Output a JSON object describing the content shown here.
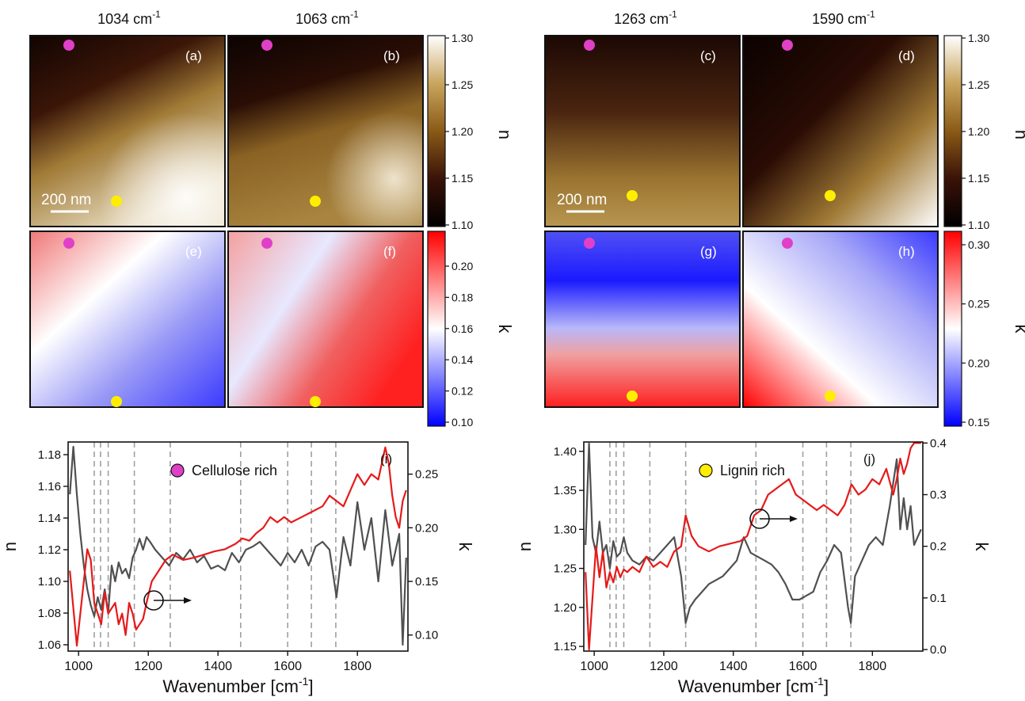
{
  "figure": {
    "col_titles": {
      "a": {
        "base": "1034 cm",
        "sup": "-1"
      },
      "b": {
        "base": "1063 cm",
        "sup": "-1"
      },
      "c": {
        "base": "1263 cm",
        "sup": "-1"
      },
      "d": {
        "base": "1590 cm",
        "sup": "-1"
      }
    },
    "panel_labels": {
      "a": "(a)",
      "b": "(b)",
      "c": "(c)",
      "d": "(d)",
      "e": "(e)",
      "f": "(f)",
      "g": "(g)",
      "h": "(h)",
      "i": "(i)",
      "j": "(j)"
    },
    "scalebar": "200 nm",
    "markers": {
      "cellulose_color": "#e040c8",
      "lignin_color": "#ffee00"
    },
    "colorbars": {
      "n_left": {
        "label": "n",
        "ticks": [
          "1.30",
          "1.25",
          "1.20",
          "1.15",
          "1.10"
        ]
      },
      "k_left": {
        "label": "k",
        "ticks": [
          "0.20",
          "0.18",
          "0.16",
          "0.14",
          "0.12",
          "0.10"
        ]
      },
      "n_right": {
        "label": "n",
        "ticks": [
          "1.30",
          "1.25",
          "1.20",
          "1.15",
          "1.10"
        ]
      },
      "k_right": {
        "label": "k",
        "ticks": [
          "0.30",
          "0.25",
          "0.20",
          "0.15"
        ]
      }
    },
    "colormaps": {
      "n": [
        "#000000",
        "#3a1208",
        "#8a5a16",
        "#c9a55e",
        "#ffffff"
      ],
      "k": [
        "#0000ff",
        "#ffffff",
        "#ff0000"
      ]
    }
  },
  "chart_data": [
    {
      "type": "line",
      "panel": "(i)",
      "legend": "Cellulose rich",
      "xlabel": {
        "base": "Wavenumber [cm",
        "sup": "-1",
        "tail": "]"
      },
      "ylabel": "n",
      "y2label": "k",
      "xlim": [
        970,
        1945
      ],
      "ylim": [
        1.056,
        1.188
      ],
      "y2lim": [
        0.085,
        0.28
      ],
      "xticks": [
        1000,
        1200,
        1400,
        1600,
        1800
      ],
      "yticks": [
        1.06,
        1.08,
        1.1,
        1.12,
        1.14,
        1.16,
        1.18
      ],
      "y2ticks": [
        0.1,
        0.15,
        0.2,
        0.25
      ],
      "vlines": [
        1045,
        1063,
        1085,
        1160,
        1263,
        1465,
        1600,
        1668,
        1738
      ],
      "colors": {
        "n": "#505050",
        "k": "#e51a1a"
      },
      "series": [
        {
          "axis": "left",
          "color": "#505050",
          "x": [
            975,
            985,
            995,
            1005,
            1015,
            1025,
            1035,
            1045,
            1055,
            1065,
            1075,
            1085,
            1095,
            1105,
            1115,
            1125,
            1135,
            1145,
            1155,
            1165,
            1175,
            1185,
            1195,
            1205,
            1220,
            1240,
            1260,
            1280,
            1300,
            1320,
            1340,
            1360,
            1380,
            1400,
            1420,
            1440,
            1460,
            1480,
            1500,
            1520,
            1540,
            1560,
            1580,
            1600,
            1620,
            1640,
            1660,
            1680,
            1700,
            1720,
            1740,
            1760,
            1780,
            1800,
            1820,
            1840,
            1860,
            1880,
            1900,
            1920,
            1930,
            1940
          ],
          "y": [
            1.155,
            1.185,
            1.155,
            1.13,
            1.11,
            1.095,
            1.085,
            1.078,
            1.09,
            1.082,
            1.095,
            1.08,
            1.11,
            1.1,
            1.112,
            1.105,
            1.108,
            1.102,
            1.115,
            1.12,
            1.127,
            1.12,
            1.128,
            1.125,
            1.12,
            1.115,
            1.11,
            1.118,
            1.114,
            1.12,
            1.112,
            1.116,
            1.108,
            1.11,
            1.107,
            1.118,
            1.112,
            1.12,
            1.122,
            1.125,
            1.12,
            1.115,
            1.11,
            1.118,
            1.112,
            1.12,
            1.11,
            1.122,
            1.125,
            1.12,
            1.09,
            1.128,
            1.11,
            1.15,
            1.12,
            1.14,
            1.1,
            1.145,
            1.11,
            1.13,
            1.06,
            1.115
          ]
        },
        {
          "axis": "right",
          "color": "#e51a1a",
          "x": [
            975,
            985,
            995,
            1005,
            1015,
            1025,
            1035,
            1045,
            1055,
            1065,
            1075,
            1085,
            1095,
            1105,
            1115,
            1125,
            1135,
            1145,
            1155,
            1165,
            1175,
            1185,
            1195,
            1210,
            1230,
            1250,
            1270,
            1300,
            1330,
            1360,
            1390,
            1420,
            1450,
            1470,
            1490,
            1510,
            1530,
            1550,
            1570,
            1590,
            1610,
            1640,
            1670,
            1700,
            1720,
            1740,
            1760,
            1780,
            1800,
            1820,
            1840,
            1860,
            1870,
            1880,
            1890,
            1900,
            1910,
            1920,
            1930,
            1940
          ],
          "y": [
            0.16,
            0.125,
            0.09,
            0.12,
            0.15,
            0.18,
            0.17,
            0.13,
            0.12,
            0.11,
            0.14,
            0.12,
            0.125,
            0.13,
            0.11,
            0.12,
            0.1,
            0.13,
            0.12,
            0.105,
            0.11,
            0.115,
            0.13,
            0.15,
            0.16,
            0.17,
            0.175,
            0.17,
            0.172,
            0.175,
            0.178,
            0.18,
            0.185,
            0.19,
            0.188,
            0.195,
            0.2,
            0.21,
            0.205,
            0.21,
            0.205,
            0.21,
            0.215,
            0.22,
            0.23,
            0.225,
            0.22,
            0.235,
            0.25,
            0.24,
            0.25,
            0.245,
            0.26,
            0.275,
            0.26,
            0.23,
            0.21,
            0.2,
            0.225,
            0.235
          ]
        }
      ]
    },
    {
      "type": "line",
      "panel": "(j)",
      "legend": "Lignin rich",
      "xlabel": {
        "base": "Wavenumber [cm",
        "sup": "-1",
        "tail": "]"
      },
      "ylabel": "n",
      "y2label": "k",
      "xlim": [
        970,
        1945
      ],
      "ylim": [
        1.144,
        1.412
      ],
      "y2lim": [
        -0.003,
        0.402
      ],
      "xticks": [
        1000,
        1200,
        1400,
        1600,
        1800
      ],
      "yticks": [
        1.15,
        1.2,
        1.25,
        1.3,
        1.35,
        1.4
      ],
      "y2ticks": [
        0.0,
        0.1,
        0.2,
        0.3,
        0.4
      ],
      "vlines": [
        1045,
        1063,
        1085,
        1160,
        1263,
        1465,
        1600,
        1668,
        1738
      ],
      "colors": {
        "n": "#505050",
        "k": "#e51a1a"
      },
      "series": [
        {
          "axis": "left",
          "color": "#505050",
          "x": [
            975,
            985,
            995,
            1005,
            1015,
            1025,
            1035,
            1045,
            1055,
            1065,
            1075,
            1085,
            1095,
            1110,
            1130,
            1150,
            1170,
            1190,
            1210,
            1230,
            1250,
            1263,
            1275,
            1290,
            1310,
            1330,
            1350,
            1370,
            1390,
            1410,
            1430,
            1450,
            1470,
            1490,
            1510,
            1530,
            1550,
            1570,
            1590,
            1610,
            1630,
            1650,
            1670,
            1690,
            1710,
            1730,
            1738,
            1750,
            1770,
            1790,
            1810,
            1830,
            1850,
            1870,
            1880,
            1890,
            1900,
            1910,
            1920,
            1940
          ],
          "y": [
            1.28,
            1.41,
            1.29,
            1.27,
            1.31,
            1.27,
            1.28,
            1.25,
            1.285,
            1.265,
            1.27,
            1.29,
            1.27,
            1.26,
            1.255,
            1.265,
            1.26,
            1.27,
            1.28,
            1.29,
            1.24,
            1.18,
            1.2,
            1.21,
            1.22,
            1.23,
            1.235,
            1.24,
            1.25,
            1.26,
            1.29,
            1.27,
            1.265,
            1.26,
            1.255,
            1.245,
            1.23,
            1.21,
            1.21,
            1.215,
            1.22,
            1.245,
            1.26,
            1.28,
            1.27,
            1.2,
            1.18,
            1.24,
            1.26,
            1.28,
            1.29,
            1.28,
            1.33,
            1.39,
            1.3,
            1.34,
            1.3,
            1.33,
            1.28,
            1.3
          ]
        },
        {
          "axis": "right",
          "color": "#e51a1a",
          "x": [
            975,
            985,
            995,
            1005,
            1015,
            1025,
            1035,
            1045,
            1055,
            1065,
            1075,
            1085,
            1095,
            1110,
            1130,
            1150,
            1170,
            1190,
            1210,
            1230,
            1250,
            1263,
            1280,
            1300,
            1330,
            1360,
            1390,
            1420,
            1440,
            1460,
            1480,
            1500,
            1520,
            1540,
            1560,
            1580,
            1600,
            1620,
            1640,
            1660,
            1680,
            1700,
            1720,
            1740,
            1760,
            1780,
            1800,
            1820,
            1840,
            1860,
            1870,
            1880,
            1890,
            1900,
            1910,
            1920,
            1930,
            1940
          ],
          "y": [
            0.15,
            0.0,
            0.1,
            0.2,
            0.14,
            0.19,
            0.12,
            0.15,
            0.13,
            0.16,
            0.14,
            0.155,
            0.15,
            0.16,
            0.15,
            0.18,
            0.16,
            0.17,
            0.16,
            0.19,
            0.2,
            0.26,
            0.22,
            0.2,
            0.19,
            0.2,
            0.205,
            0.21,
            0.22,
            0.26,
            0.27,
            0.3,
            0.31,
            0.32,
            0.33,
            0.3,
            0.29,
            0.28,
            0.27,
            0.28,
            0.27,
            0.26,
            0.28,
            0.32,
            0.3,
            0.31,
            0.33,
            0.32,
            0.35,
            0.3,
            0.33,
            0.37,
            0.34,
            0.36,
            0.39,
            0.4,
            0.4,
            0.4
          ]
        }
      ]
    }
  ]
}
